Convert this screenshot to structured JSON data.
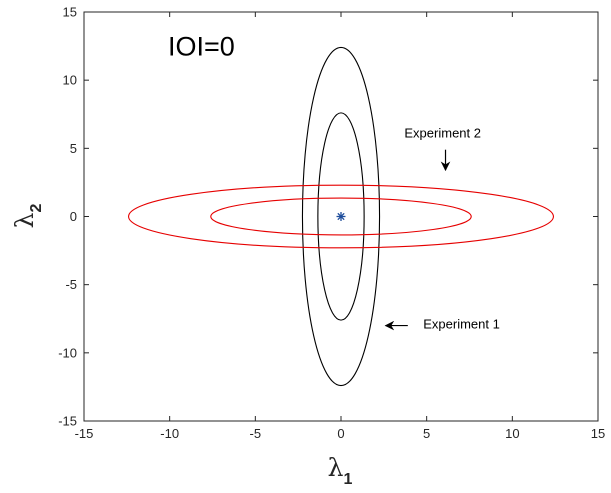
{
  "colors": {
    "experiment_1": "#000000",
    "experiment_2": "#e60000",
    "center_marker": "#1f4e9c",
    "axis": "#262626"
  },
  "chart_data": {
    "type": "line",
    "xlim": [
      -15,
      15
    ],
    "ylim": [
      -15,
      15
    ],
    "xticks": [
      -15,
      -10,
      -5,
      0,
      5,
      10,
      15
    ],
    "yticks": [
      -15,
      -10,
      -5,
      0,
      5,
      10,
      15
    ],
    "xlabel": "λ",
    "xlabel_subscript": "1",
    "ylabel": "λ",
    "ylabel_subscript": "2",
    "grid": false,
    "series": [
      {
        "name": "Experiment 1",
        "color": "#000000",
        "ellipses": [
          {
            "cx": 0,
            "cy": 0,
            "rx": 1.35,
            "ry": 7.6
          },
          {
            "cx": 0,
            "cy": 0,
            "rx": 2.25,
            "ry": 12.4
          }
        ]
      },
      {
        "name": "Experiment 2",
        "color": "#e60000",
        "ellipses": [
          {
            "cx": 0,
            "cy": 0,
            "rx": 7.6,
            "ry": 1.35
          },
          {
            "cx": 0,
            "cy": 0,
            "rx": 12.4,
            "ry": 2.3
          }
        ]
      }
    ],
    "center_point": {
      "x": 0,
      "y": 0,
      "marker": "*"
    },
    "annotations": [
      {
        "text": "IOI=0",
        "x": -10.1,
        "y": 11.8,
        "style": "large"
      },
      {
        "text": "Experiment 2",
        "x": 3.7,
        "y": 5.8,
        "arrow_to": [
          6.1,
          3.4
        ],
        "arrow_from": [
          6.1,
          4.9
        ]
      },
      {
        "text": "Experiment 1",
        "x": 4.8,
        "y": -8.2,
        "arrow_to": [
          2.6,
          -8.0
        ],
        "arrow_from": [
          3.9,
          -8.0
        ]
      }
    ]
  }
}
